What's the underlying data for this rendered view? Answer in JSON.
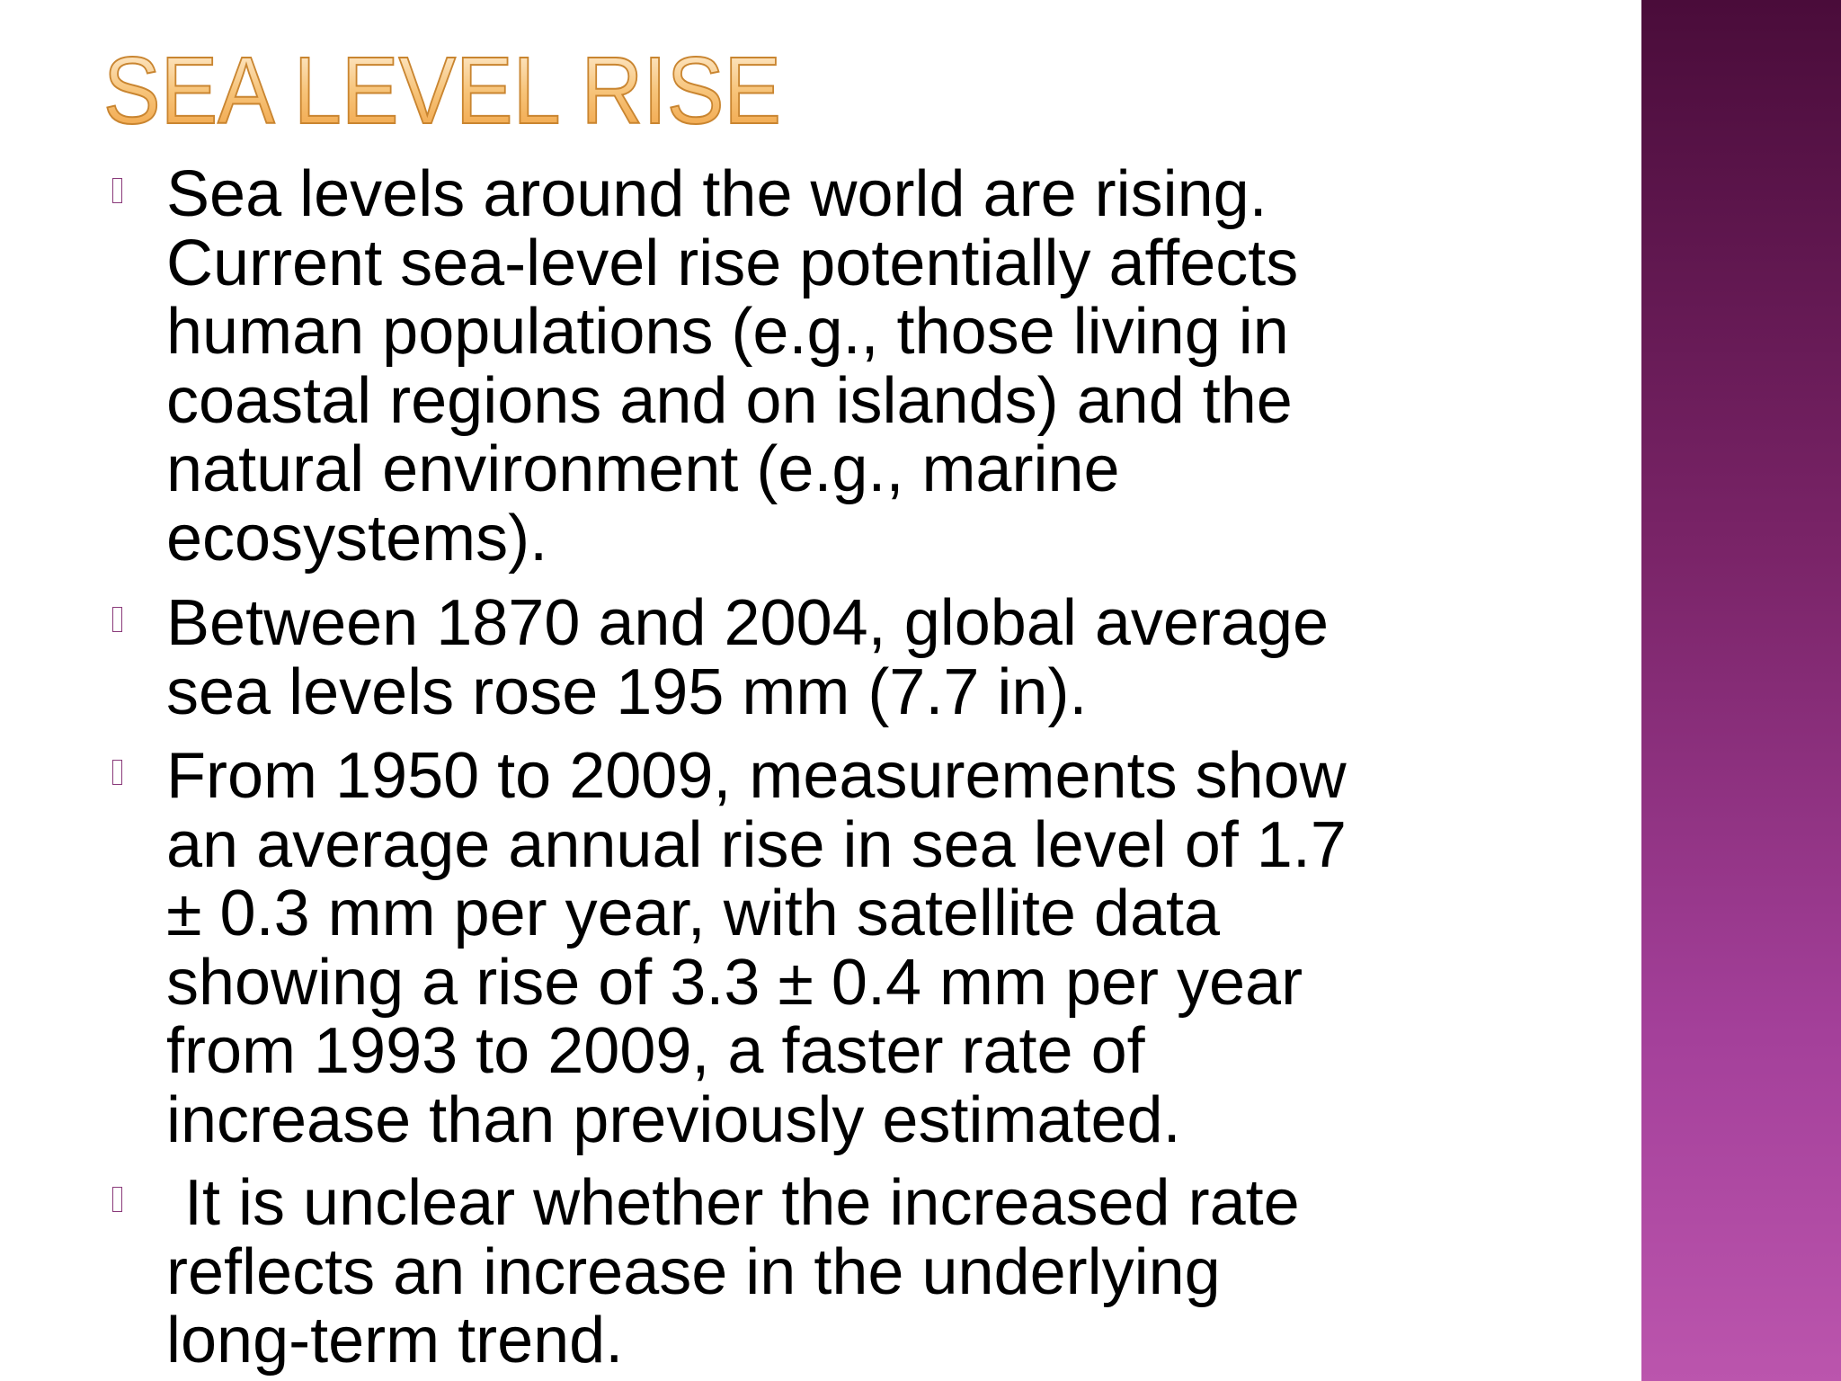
{
  "title": "SEA LEVEL RISE",
  "bullets": [
    {
      "lines": [
        "Sea levels around the world are rising.",
        "Current sea-level rise potentially affects",
        "human populations (e.g., those living in",
        "coastal regions and on islands) and the",
        "natural environment (e.g., marine",
        "ecosystems)."
      ]
    },
    {
      "lines": [
        "Between 1870 and 2004, global average",
        "sea levels rose 195 mm (7.7 in)."
      ]
    },
    {
      "lines": [
        "From 1950 to 2009, measurements show",
        "an average annual rise in sea level of 1.7",
        "± 0.3 mm per year, with satellite data",
        "showing a rise of 3.3 ± 0.4 mm per year",
        "from 1993 to 2009, a faster rate of",
        "increase than previously estimated."
      ]
    },
    {
      "lines": [
        " It is unclear whether the increased rate",
        "reflects an increase in the underlying",
        "long-term trend."
      ]
    }
  ]
}
